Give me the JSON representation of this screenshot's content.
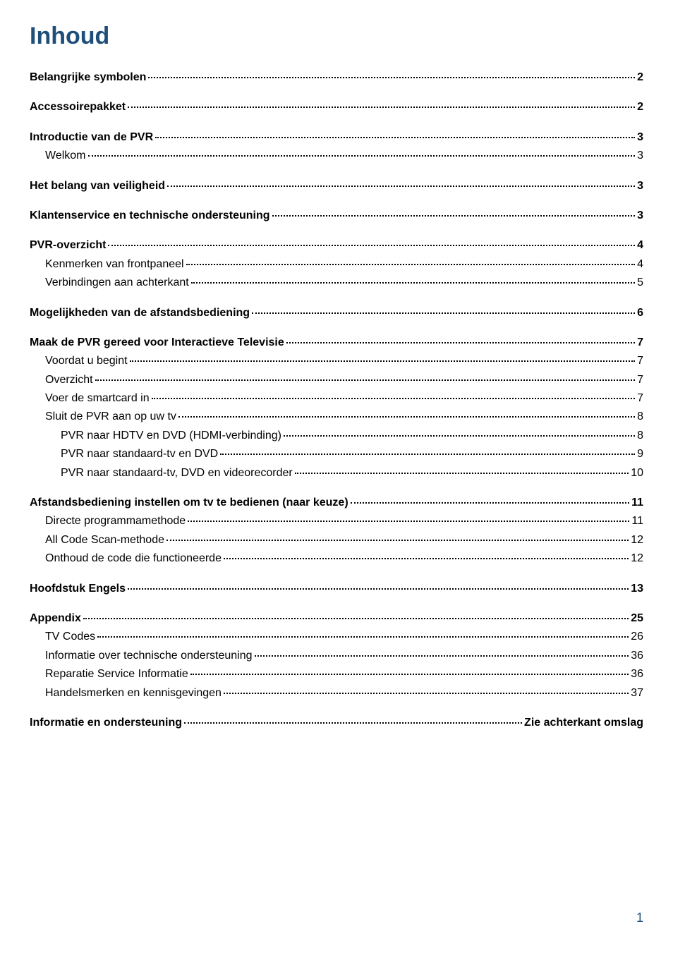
{
  "title": "Inhoud",
  "pageNumber": "1",
  "colors": {
    "heading": "#1f4e79",
    "text": "#000000",
    "background": "#ffffff"
  },
  "typography": {
    "titleFontSize": 34,
    "entryFontSize": 16,
    "fontFamily": "Arial"
  },
  "entries": [
    {
      "label": "Belangrijke symbolen",
      "page": "2",
      "level": 0
    },
    {
      "label": "Accessoirepakket",
      "page": "2",
      "level": 0
    },
    {
      "label": "Introductie van de PVR",
      "page": "3",
      "level": 0
    },
    {
      "label": "Welkom",
      "page": "3",
      "level": 1
    },
    {
      "label": "Het belang van veiligheid",
      "page": "3",
      "level": 0
    },
    {
      "label": "Klantenservice en technische ondersteuning",
      "page": "3",
      "level": 0
    },
    {
      "label": "PVR-overzicht",
      "page": "4",
      "level": 0
    },
    {
      "label": "Kenmerken van frontpaneel",
      "page": "4",
      "level": 1
    },
    {
      "label": "Verbindingen aan achterkant",
      "page": "5",
      "level": 1
    },
    {
      "label": "Mogelijkheden van de afstandsbediening",
      "page": "6",
      "level": 0
    },
    {
      "label": "Maak de PVR gereed voor Interactieve Televisie",
      "page": "7",
      "level": 0
    },
    {
      "label": "Voordat u begint",
      "page": "7",
      "level": 1
    },
    {
      "label": "Overzicht",
      "page": "7",
      "level": 1
    },
    {
      "label": "Voer de smartcard in",
      "page": "7",
      "level": 1
    },
    {
      "label": "Sluit de PVR aan op uw tv",
      "page": "8",
      "level": 1
    },
    {
      "label": "PVR naar HDTV en DVD (HDMI-verbinding)",
      "page": "8",
      "level": 2
    },
    {
      "label": "PVR naar standaard-tv en DVD",
      "page": "9",
      "level": 2
    },
    {
      "label": "PVR naar standaard-tv, DVD en videorecorder",
      "page": "10",
      "level": 2
    },
    {
      "label": "Afstandsbediening instellen om tv te bedienen (naar keuze)",
      "page": "11",
      "level": 0
    },
    {
      "label": "Directe programmamethode",
      "page": "11",
      "level": 1
    },
    {
      "label": "All Code Scan-methode",
      "page": "12",
      "level": 1
    },
    {
      "label": "Onthoud de code die functioneerde",
      "page": "12",
      "level": 1
    },
    {
      "label": "Hoofdstuk Engels",
      "page": "13",
      "level": 0
    },
    {
      "label": "Appendix",
      "page": "25",
      "level": 0
    },
    {
      "label": "TV Codes",
      "page": "26",
      "level": 1
    },
    {
      "label": "Informatie over technische ondersteuning ",
      "page": "36",
      "level": 1
    },
    {
      "label": "Reparatie Service Informatie",
      "page": "36",
      "level": 1
    },
    {
      "label": "Handelsmerken en kennisgevingen",
      "page": "37",
      "level": 1
    },
    {
      "label": "Informatie en ondersteuning",
      "page": " Zie achterkant omslag",
      "level": 0
    }
  ]
}
